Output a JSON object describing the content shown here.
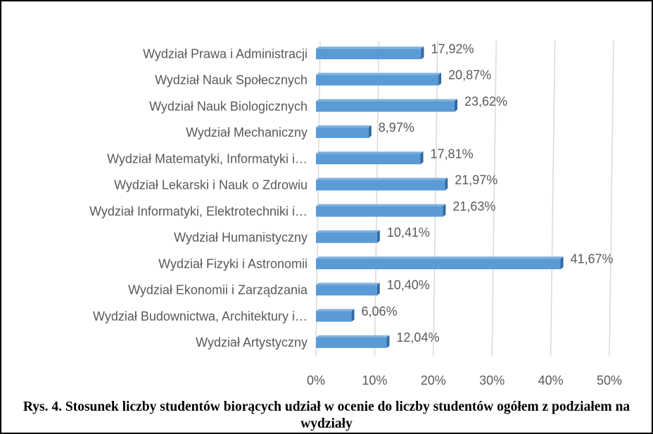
{
  "chart_data": {
    "type": "bar",
    "orientation": "horizontal",
    "title": "Rys. 4. Stosunek liczby studentów biorących udział w ocenie do liczby studentów ogółem z podziałem na wydziały",
    "categories": [
      "Wydział Prawa i Administracji",
      "Wydział Nauk Społecznych",
      "Wydział Nauk Biologicznych",
      "Wydział Mechaniczny",
      "Wydział Matematyki, Informatyki i…",
      "Wydział Lekarski i Nauk o Zdrowiu",
      "Wydział Informatyki, Elektrotechniki i…",
      "Wydział Humanistyczny",
      "Wydział Fizyki i Astronomii",
      "Wydział Ekonomii i Zarządzania",
      "Wydział Budownictwa, Architektury i…",
      "Wydział Artystyczny"
    ],
    "values": [
      17.92,
      20.87,
      23.62,
      8.97,
      17.81,
      21.97,
      21.63,
      10.41,
      41.67,
      10.4,
      6.06,
      12.04
    ],
    "value_labels": [
      "17,92%",
      "20,87%",
      "23,62%",
      "8,97%",
      "17,81%",
      "21,97%",
      "21,63%",
      "10,41%",
      "41,67%",
      "10,40%",
      "6,06%",
      "12,04%"
    ],
    "color": "#5b9bd5",
    "xlim": [
      0,
      50
    ],
    "xticks": [
      {
        "value": 0,
        "label": "0%"
      },
      {
        "value": 10,
        "label": "10%"
      },
      {
        "value": 20,
        "label": "20%"
      },
      {
        "value": 30,
        "label": "30%"
      },
      {
        "value": 40,
        "label": "40%"
      },
      {
        "value": 50,
        "label": "50%"
      }
    ],
    "grid": true
  }
}
